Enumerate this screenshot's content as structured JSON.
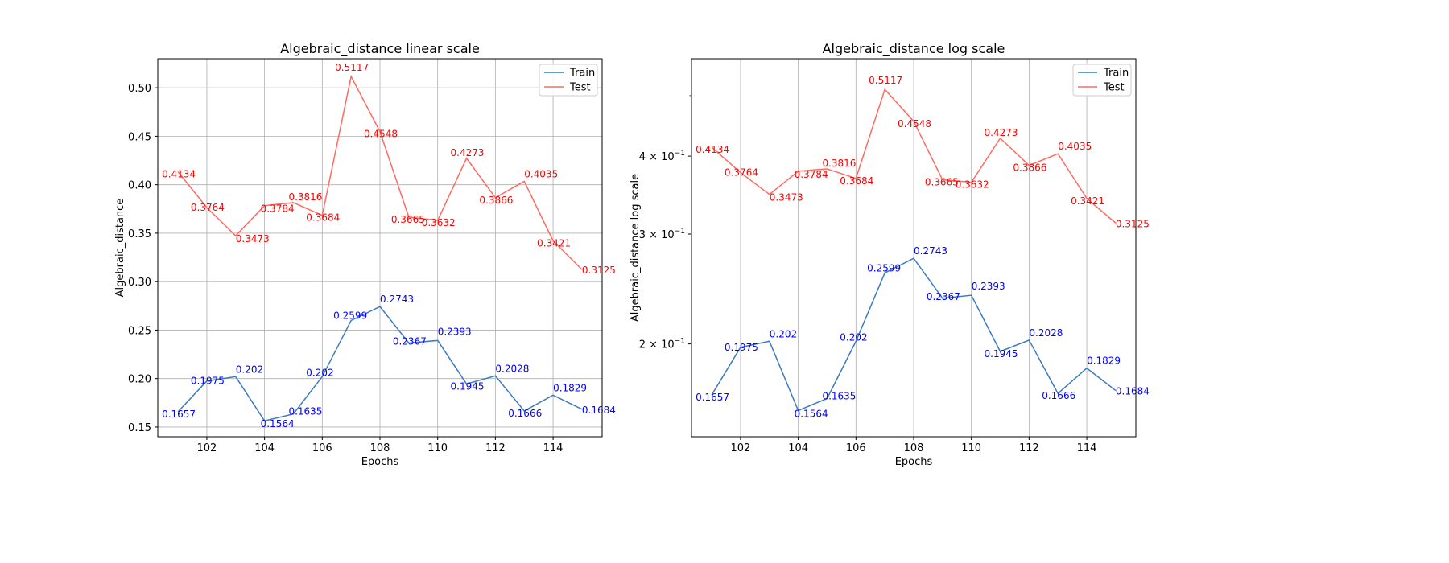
{
  "chart_data": [
    {
      "type": "line",
      "title": "Algebraic_distance linear scale",
      "xlabel": "Epochs",
      "ylabel": "Algebraic_distance",
      "scale": "linear",
      "grid": true,
      "legend_position": "top-right",
      "xlim": [
        100.3,
        115.7
      ],
      "ylim": [
        0.14,
        0.53
      ],
      "x_ticks": [
        102,
        104,
        106,
        108,
        110,
        112,
        114
      ],
      "x_tick_labels": [
        "102",
        "104",
        "106",
        "108",
        "110",
        "112",
        "114"
      ],
      "y_ticks": [
        0.15,
        0.2,
        0.25,
        0.3,
        0.35,
        0.4,
        0.45,
        0.5
      ],
      "y_tick_labels": [
        "0.15",
        "0.20",
        "0.25",
        "0.30",
        "0.35",
        "0.40",
        "0.45",
        "0.50"
      ],
      "x": [
        101,
        102,
        103,
        104,
        105,
        106,
        107,
        108,
        109,
        110,
        111,
        112,
        113,
        114,
        115
      ],
      "series": [
        {
          "name": "Train",
          "color": "#3b7bbf",
          "label_color": "#0000ff",
          "values": [
            0.1657,
            0.1975,
            0.202,
            0.1564,
            0.1635,
            0.202,
            0.2599,
            0.2743,
            0.2367,
            0.2393,
            0.1945,
            0.2028,
            0.1666,
            0.1829,
            0.1684
          ],
          "labels": [
            "0.1657",
            "0.1975",
            "0.202",
            "0.1564",
            "0.1635",
            "0.202",
            "0.2599",
            "0.2743",
            "0.2367",
            "0.2393",
            "0.1945",
            "0.2028",
            "0.1666",
            "0.1829",
            "0.1684"
          ]
        },
        {
          "name": "Test",
          "color": "#ff6a60",
          "label_color": "#ff0000",
          "values": [
            0.4134,
            0.3764,
            0.3473,
            0.3784,
            0.3816,
            0.3684,
            0.5117,
            0.4548,
            0.3665,
            0.3632,
            0.4273,
            0.3866,
            0.4035,
            0.3421,
            0.3125
          ],
          "labels": [
            "0.4134",
            "0.3764",
            "0.3473",
            "0.3784",
            "0.3816",
            "0.3684",
            "0.5117",
            "0.4548",
            "0.3665",
            "0.3632",
            "0.4273",
            "0.3866",
            "0.4035",
            "0.3421",
            "0.3125"
          ]
        }
      ]
    },
    {
      "type": "line",
      "title": "Algebraic_distance log scale",
      "xlabel": "Epochs",
      "ylabel": "Algebraic_distance log scale",
      "scale": "log",
      "grid": true,
      "legend_position": "top-right",
      "xlim": [
        100.3,
        115.7
      ],
      "ylim": [
        0.142,
        0.573
      ],
      "x_ticks": [
        102,
        104,
        106,
        108,
        110,
        112,
        114
      ],
      "x_tick_labels": [
        "102",
        "104",
        "106",
        "108",
        "110",
        "112",
        "114"
      ],
      "y_ticks": [
        0.2,
        0.3,
        0.4
      ],
      "y_tick_labels": [
        {
          "base": "2 × 10",
          "exp": "−1"
        },
        {
          "base": "3 × 10",
          "exp": "−1"
        },
        {
          "base": "4 × 10",
          "exp": "−1"
        }
      ],
      "y_minor_ticks": [
        0.5
      ],
      "x": [
        101,
        102,
        103,
        104,
        105,
        106,
        107,
        108,
        109,
        110,
        111,
        112,
        113,
        114,
        115
      ],
      "series": [
        {
          "name": "Train",
          "color": "#3b7bbf",
          "label_color": "#0000ff",
          "values": [
            0.1657,
            0.1975,
            0.202,
            0.1564,
            0.1635,
            0.202,
            0.2599,
            0.2743,
            0.2367,
            0.2393,
            0.1945,
            0.2028,
            0.1666,
            0.1829,
            0.1684
          ],
          "labels": [
            "0.1657",
            "0.1975",
            "0.202",
            "0.1564",
            "0.1635",
            "0.202",
            "0.2599",
            "0.2743",
            "0.2367",
            "0.2393",
            "0.1945",
            "0.2028",
            "0.1666",
            "0.1829",
            "0.1684"
          ]
        },
        {
          "name": "Test",
          "color": "#ff6a60",
          "label_color": "#ff0000",
          "values": [
            0.4134,
            0.3764,
            0.3473,
            0.3784,
            0.3816,
            0.3684,
            0.5117,
            0.4548,
            0.3665,
            0.3632,
            0.4273,
            0.3866,
            0.4035,
            0.3421,
            0.3125
          ],
          "labels": [
            "0.4134",
            "0.3764",
            "0.3473",
            "0.3784",
            "0.3816",
            "0.3684",
            "0.5117",
            "0.4548",
            "0.3665",
            "0.3632",
            "0.4273",
            "0.3866",
            "0.4035",
            "0.3421",
            "0.3125"
          ]
        }
      ]
    }
  ]
}
